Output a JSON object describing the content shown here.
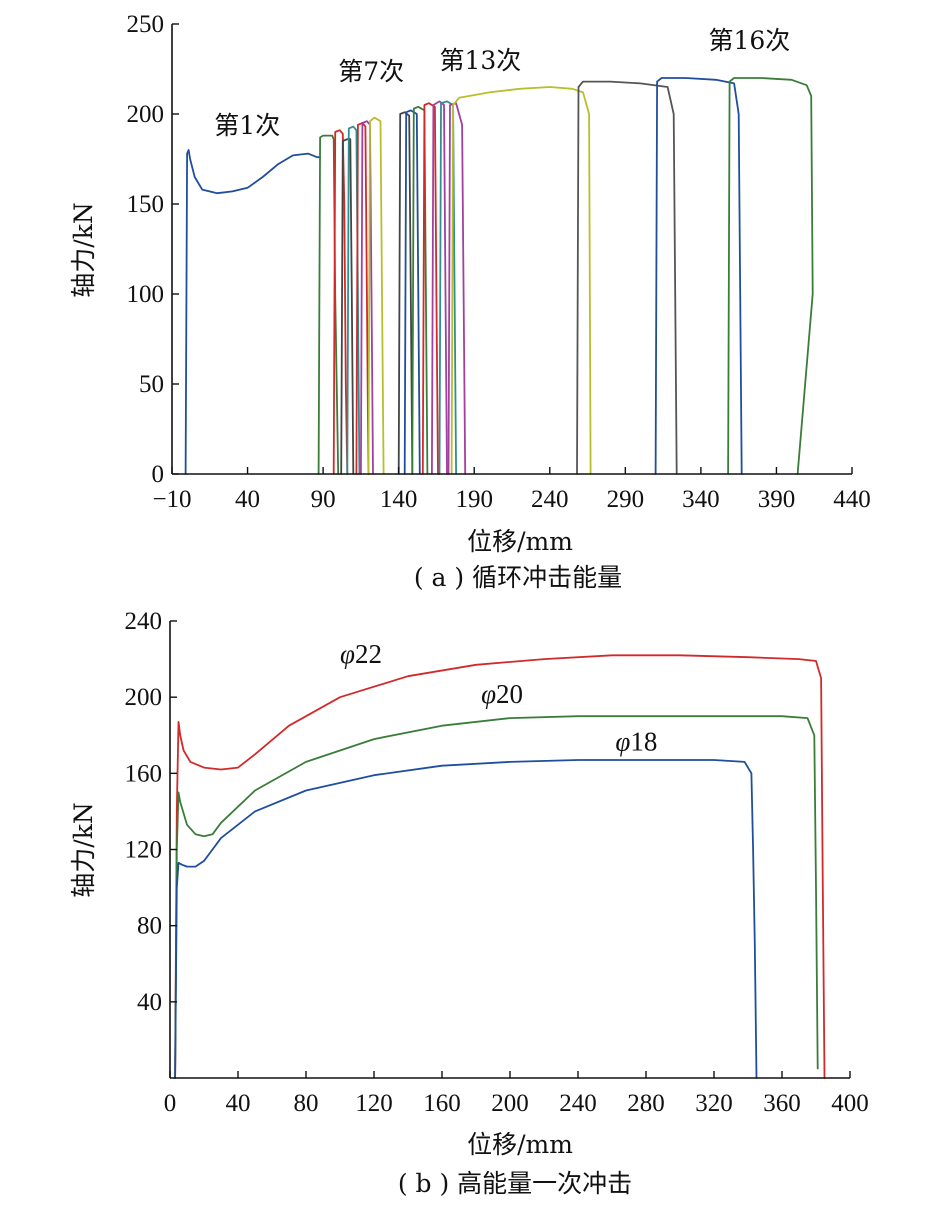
{
  "chart_data": [
    {
      "type": "line",
      "caption": "( a ) 循环冲击能量",
      "xlabel": "位移/mm",
      "ylabel": "轴力/kN",
      "xlim": [
        -10,
        440
      ],
      "ylim": [
        0,
        250
      ],
      "xticks": [
        -10,
        40,
        90,
        140,
        190,
        240,
        290,
        340,
        390,
        440
      ],
      "xtick_labels": [
        "−10",
        "40",
        "90",
        "140",
        "190",
        "240",
        "290",
        "340",
        "390",
        "440"
      ],
      "yticks": [
        0,
        50,
        100,
        150,
        200,
        250
      ],
      "annotations": [
        {
          "text": "第1次",
          "x": 18,
          "y": 189
        },
        {
          "text": "第7次",
          "x": 100,
          "y": 219
        },
        {
          "text": "第13次",
          "x": 167,
          "y": 225
        },
        {
          "text": "第16次",
          "x": 345,
          "y": 236
        }
      ],
      "series": [
        {
          "color": "#1f4e9e",
          "x": [
            -1,
            0,
            1,
            2,
            5,
            10,
            20,
            30,
            40,
            50,
            60,
            70,
            80,
            86,
            87,
            88
          ],
          "y": [
            0,
            178,
            180,
            175,
            165,
            158,
            156,
            157,
            159,
            165,
            172,
            177,
            178,
            176,
            176,
            176
          ]
        },
        {
          "color": "#3a7d3a",
          "x": [
            87,
            88,
            90,
            96,
            97,
            98,
            100
          ],
          "y": [
            0,
            187,
            188,
            188,
            186,
            100,
            0
          ]
        },
        {
          "color": "#d22a2a",
          "x": [
            97,
            98,
            101,
            103,
            104,
            105,
            106
          ],
          "y": [
            0,
            190,
            191,
            189,
            150,
            50,
            0
          ]
        },
        {
          "color": "#444444",
          "x": [
            102,
            103,
            106,
            108,
            109,
            110
          ],
          "y": [
            0,
            185,
            186,
            186,
            100,
            0
          ]
        },
        {
          "color": "#2f8f8f",
          "x": [
            106,
            107,
            110,
            112,
            113,
            114
          ],
          "y": [
            0,
            192,
            193,
            191,
            100,
            0
          ]
        },
        {
          "color": "#d22a2a",
          "x": [
            112,
            113,
            116,
            118,
            119,
            120
          ],
          "y": [
            0,
            194,
            195,
            193,
            100,
            0
          ]
        },
        {
          "color": "#a040a0",
          "x": [
            115,
            116,
            119,
            121,
            122,
            123
          ],
          "y": [
            0,
            195,
            196,
            194,
            100,
            0
          ]
        },
        {
          "color": "#b8bf2a",
          "x": [
            120,
            121,
            124,
            128,
            129,
            130
          ],
          "y": [
            0,
            196,
            198,
            196,
            100,
            0
          ]
        },
        {
          "color": "#444444",
          "x": [
            140,
            141,
            144,
            147,
            148,
            149
          ],
          "y": [
            0,
            200,
            201,
            199,
            100,
            0
          ]
        },
        {
          "color": "#1f4e9e",
          "x": [
            144,
            145,
            148,
            152,
            153,
            154
          ],
          "y": [
            0,
            201,
            202,
            200,
            100,
            0
          ]
        },
        {
          "color": "#3a7d3a",
          "x": [
            149,
            150,
            153,
            157,
            158,
            159
          ],
          "y": [
            0,
            203,
            204,
            202,
            100,
            0
          ]
        },
        {
          "color": "#d22a2a",
          "x": [
            156,
            157,
            160,
            164,
            165,
            166
          ],
          "y": [
            0,
            205,
            206,
            204,
            100,
            0
          ]
        },
        {
          "color": "#a040a0",
          "x": [
            162,
            163,
            167,
            170,
            171,
            172
          ],
          "y": [
            0,
            205,
            207,
            205,
            100,
            0
          ]
        },
        {
          "color": "#2f8f8f",
          "x": [
            167,
            168,
            172,
            176,
            177,
            178
          ],
          "y": [
            0,
            206,
            207,
            205,
            100,
            0
          ]
        },
        {
          "color": "#a040a0",
          "x": [
            173,
            174,
            178,
            182,
            183,
            184
          ],
          "y": [
            0,
            205,
            206,
            194,
            100,
            0
          ]
        },
        {
          "color": "#b8bf2a",
          "x": [
            175,
            176,
            180,
            200,
            220,
            240,
            255,
            262,
            266,
            267
          ],
          "y": [
            0,
            205,
            209,
            212,
            214,
            215,
            214,
            212,
            200,
            0
          ]
        },
        {
          "color": "#555555",
          "x": [
            258,
            259,
            262,
            280,
            300,
            318,
            322,
            323,
            324
          ],
          "y": [
            0,
            215,
            218,
            218,
            217,
            215,
            200,
            100,
            0
          ]
        },
        {
          "color": "#1f4e9e",
          "x": [
            310,
            311,
            314,
            330,
            350,
            362,
            365,
            366,
            367
          ],
          "y": [
            0,
            218,
            220,
            220,
            219,
            217,
            200,
            100,
            0
          ]
        },
        {
          "color": "#3a7d3a",
          "x": [
            358,
            359,
            362,
            380,
            400,
            410,
            413,
            414,
            404
          ],
          "y": [
            0,
            218,
            220,
            220,
            219,
            216,
            210,
            100,
            0
          ]
        }
      ]
    },
    {
      "type": "line",
      "caption": "( b ) 高能量一次冲击",
      "xlabel": "位移/mm",
      "ylabel": "轴力/kN",
      "xlim": [
        0,
        400
      ],
      "ylim": [
        0,
        240
      ],
      "xticks": [
        0,
        40,
        80,
        120,
        160,
        200,
        240,
        280,
        320,
        360,
        400
      ],
      "yticks": [
        40,
        80,
        120,
        160,
        200,
        240
      ],
      "series": [
        {
          "name": "φ22",
          "label": "22",
          "label_x": 100,
          "label_y": 218,
          "color": "#d22a2a",
          "x": [
            3,
            4,
            5,
            6,
            8,
            12,
            20,
            30,
            40,
            50,
            70,
            100,
            140,
            180,
            220,
            260,
            300,
            340,
            370,
            380,
            383,
            384,
            385
          ],
          "y": [
            0,
            140,
            187,
            180,
            172,
            166,
            163,
            162,
            163,
            170,
            185,
            200,
            211,
            217,
            220,
            222,
            222,
            221,
            220,
            219,
            210,
            100,
            0
          ]
        },
        {
          "name": "φ20",
          "label": "20",
          "label_x": 183,
          "label_y": 197,
          "color": "#3a7d3a",
          "x": [
            3,
            4,
            5,
            6,
            10,
            15,
            20,
            25,
            30,
            50,
            80,
            120,
            160,
            200,
            240,
            280,
            320,
            360,
            375,
            379,
            380,
            381
          ],
          "y": [
            0,
            120,
            150,
            145,
            133,
            128,
            127,
            128,
            134,
            151,
            166,
            178,
            185,
            189,
            190,
            190,
            190,
            190,
            189,
            180,
            100,
            5
          ]
        },
        {
          "name": "φ18",
          "label": "18",
          "label_x": 262,
          "label_y": 172,
          "color": "#1f4e9e",
          "x": [
            3,
            4,
            5,
            7,
            10,
            15,
            20,
            25,
            30,
            50,
            80,
            120,
            160,
            200,
            240,
            280,
            320,
            338,
            342,
            343,
            344,
            345
          ],
          "y": [
            0,
            100,
            113,
            112,
            111,
            111,
            114,
            120,
            126,
            140,
            151,
            159,
            164,
            166,
            167,
            167,
            167,
            166,
            160,
            120,
            70,
            0
          ]
        }
      ]
    }
  ]
}
